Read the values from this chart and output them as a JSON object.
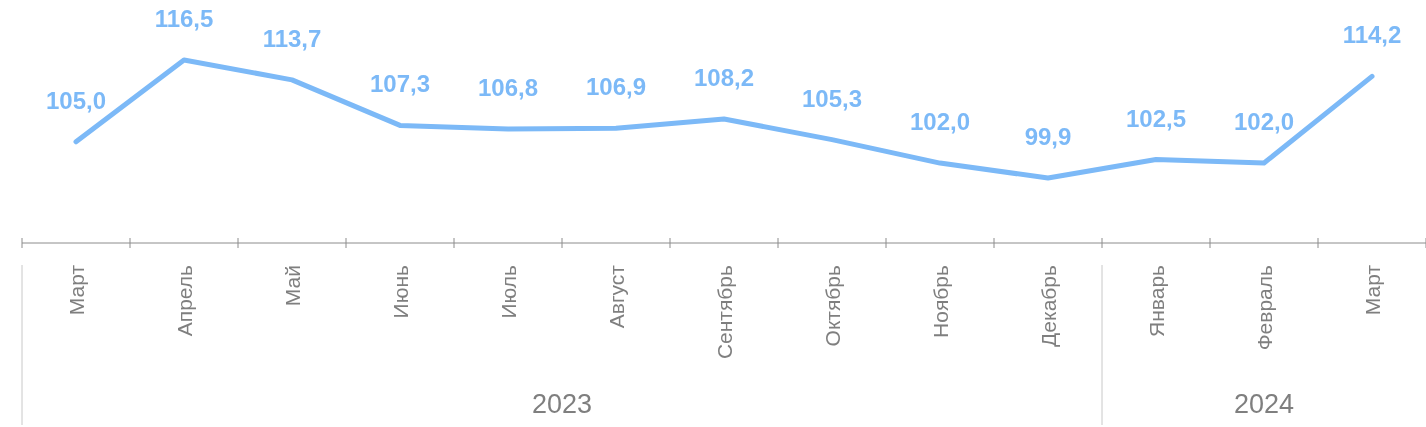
{
  "chart_data": {
    "type": "line",
    "categories": [
      "Март",
      "Апрель",
      "Май",
      "Июнь",
      "Июль",
      "Август",
      "Сентябрь",
      "Октябрь",
      "Ноябрь",
      "Декабрь",
      "Январь",
      "Февраль",
      "Март"
    ],
    "series": [
      {
        "color": "#7cb9f7",
        "values": [
          105.0,
          116.5,
          113.7,
          107.3,
          106.8,
          106.9,
          108.2,
          105.3,
          102.0,
          99.9,
          102.5,
          102.0,
          114.2
        ],
        "value_labels": [
          "105,0",
          "116,5",
          "113,7",
          "107,3",
          "106,8",
          "106,9",
          "108,2",
          "105,3",
          "102,0",
          "99,9",
          "102,5",
          "102,0",
          "114,2"
        ]
      }
    ],
    "annotations": [
      "2023",
      "2024"
    ],
    "marker": "none",
    "line_style": "solid",
    "grid": false
  }
}
